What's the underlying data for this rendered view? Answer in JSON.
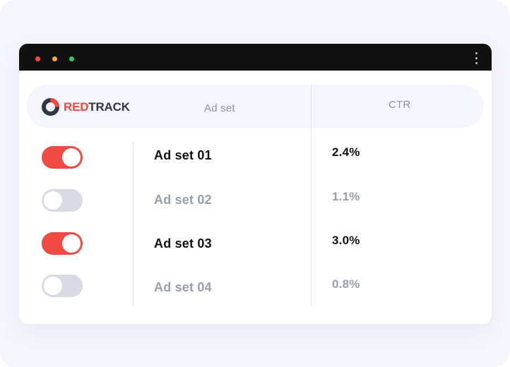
{
  "brand": {
    "logo_part1": "RED",
    "logo_part2": "TRACK",
    "accent_color": "#f04a43",
    "dark_color": "#2f3644"
  },
  "window": {
    "traffic_lights": [
      "#f0513f",
      "#f3a53a",
      "#3fc36a"
    ],
    "menu_icon": "kebab-menu-icon"
  },
  "table": {
    "columns": [
      "Ad set",
      "CTR"
    ],
    "rows": [
      {
        "enabled": true,
        "name": "Ad set 01",
        "ctr": "2.4%"
      },
      {
        "enabled": false,
        "name": "Ad set 02",
        "ctr": "1.1%"
      },
      {
        "enabled": true,
        "name": "Ad set 03",
        "ctr": "3.0%"
      },
      {
        "enabled": false,
        "name": "Ad set 04",
        "ctr": "0.8%"
      }
    ]
  }
}
